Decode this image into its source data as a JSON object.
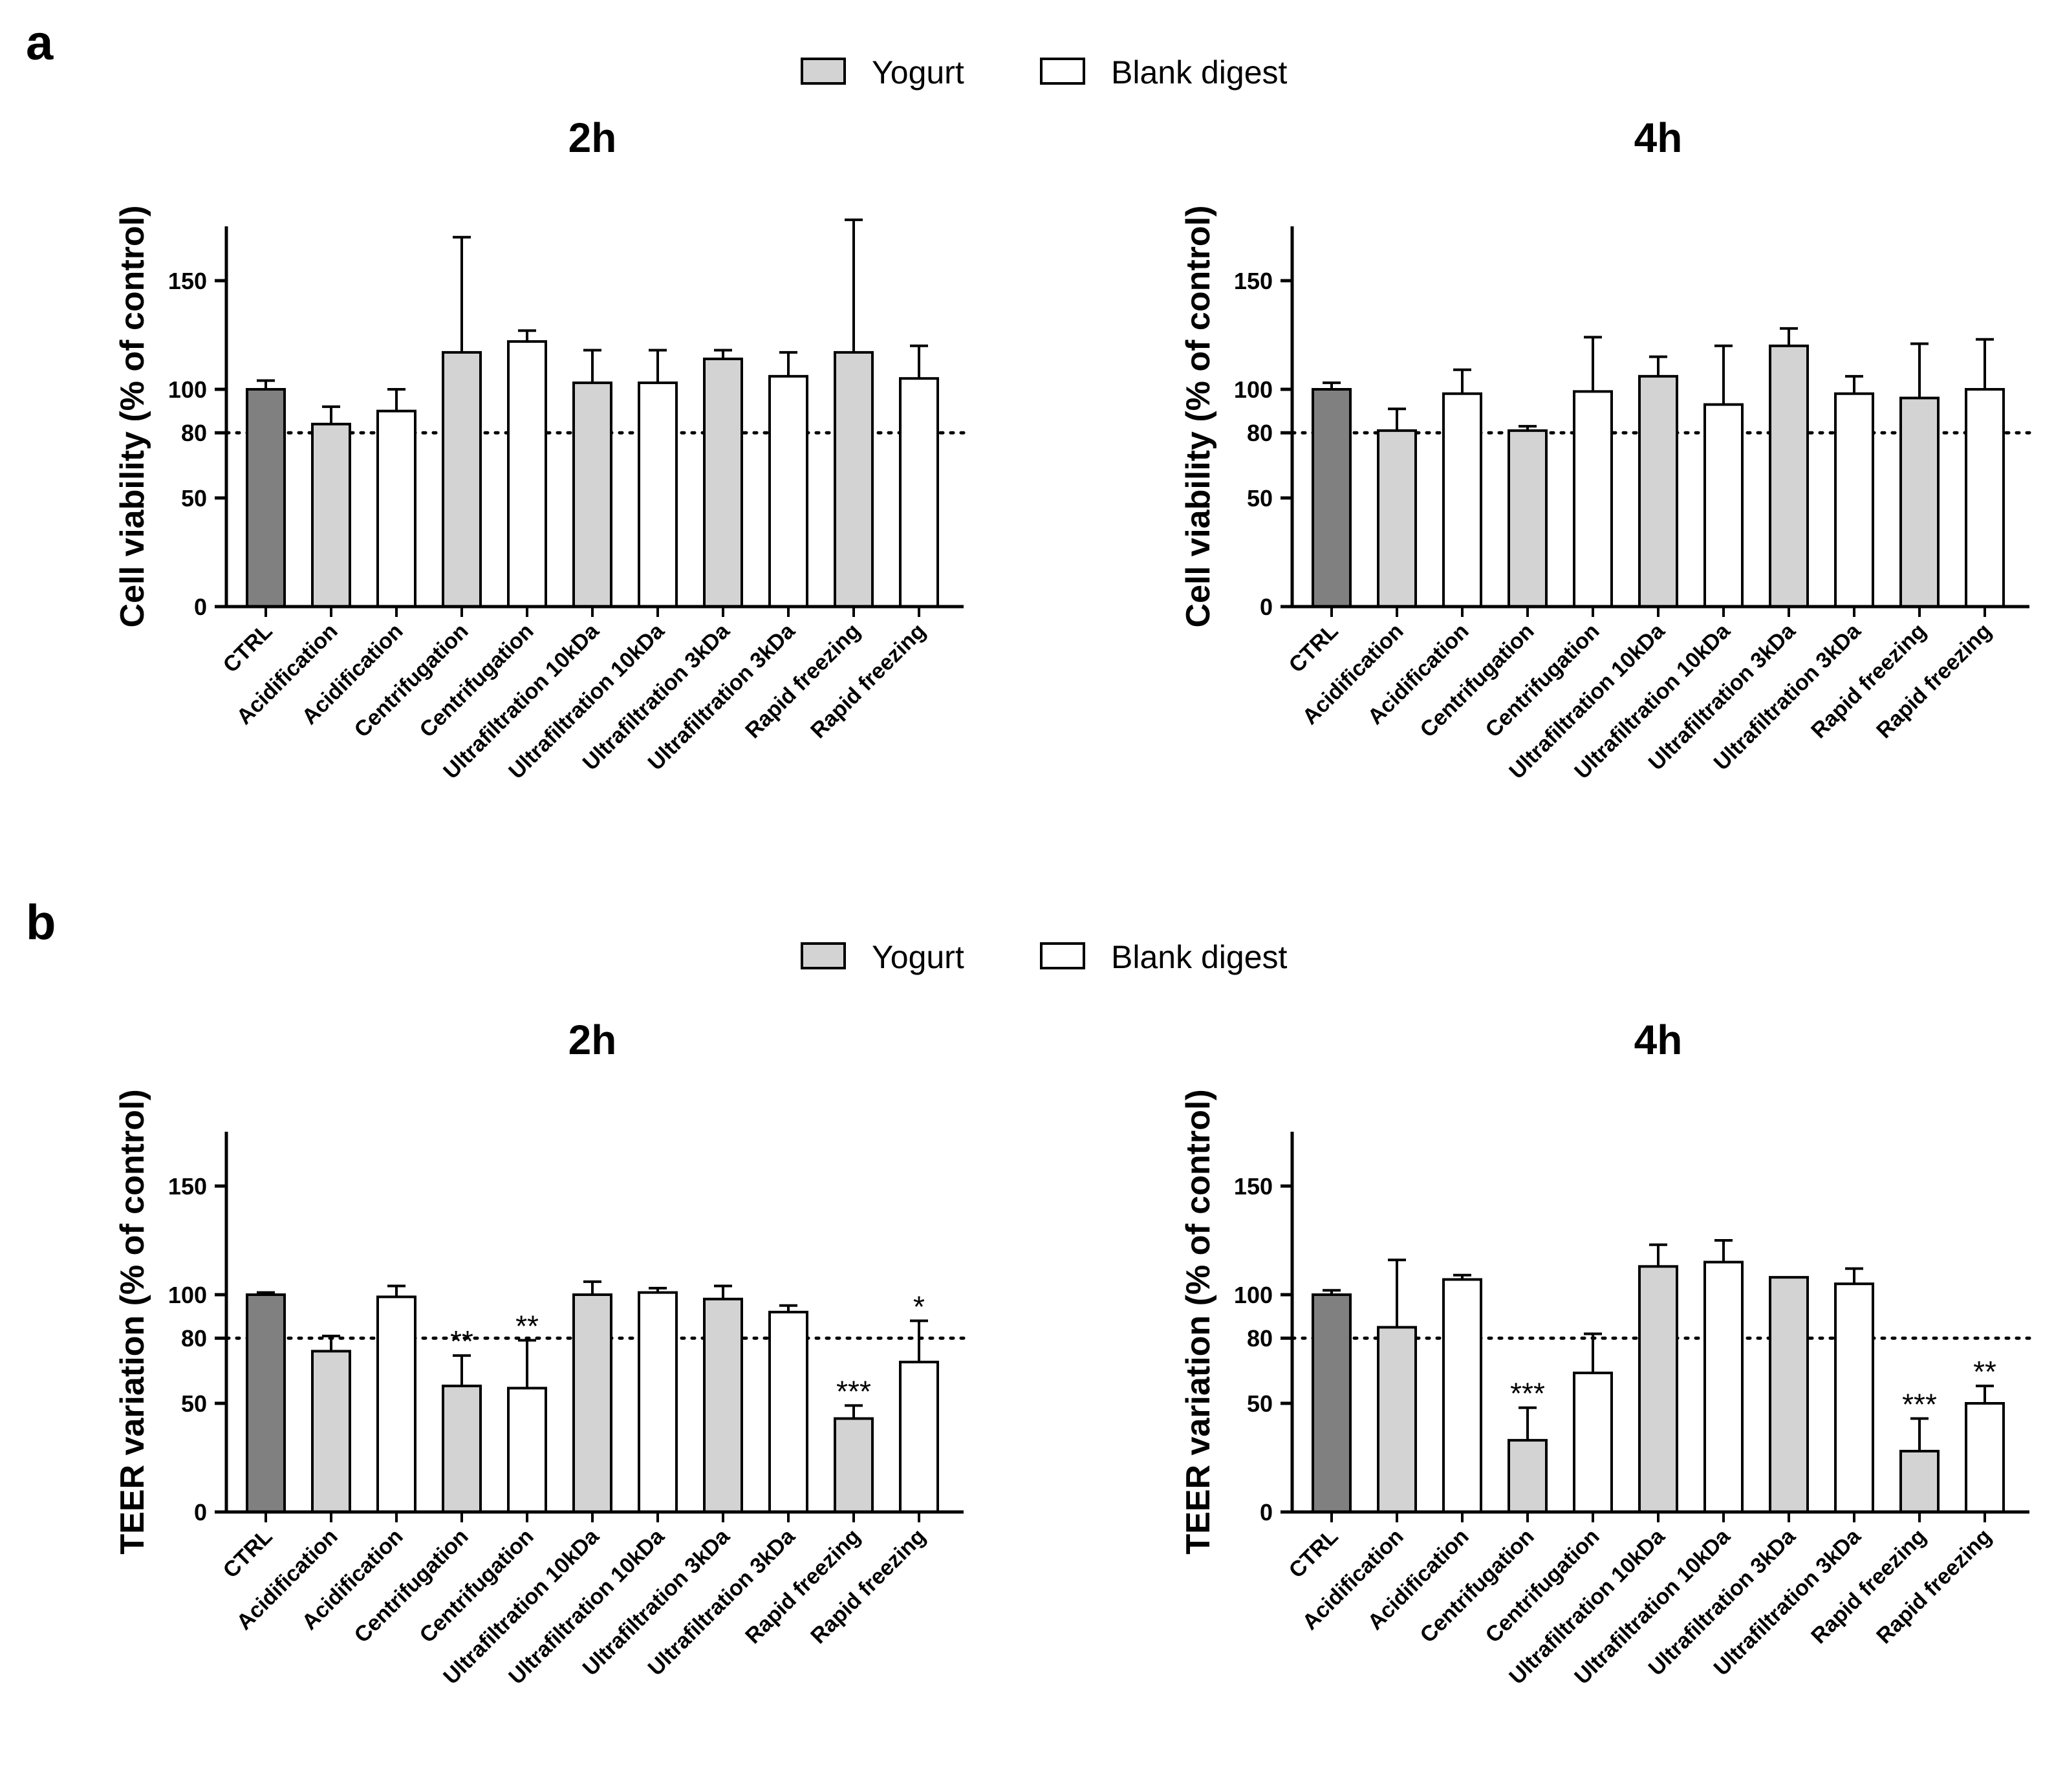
{
  "panels": [
    {
      "label": "a",
      "legend": [
        {
          "name": "Yogurt",
          "color": "#d3d3d3"
        },
        {
          "name": "Blank digest",
          "color": "#ffffff"
        }
      ]
    },
    {
      "label": "b",
      "legend": [
        {
          "name": "Yogurt",
          "color": "#d3d3d3"
        },
        {
          "name": "Blank digest",
          "color": "#ffffff"
        }
      ]
    }
  ],
  "colors": {
    "ctrl": "#808080",
    "yogurt": "#d3d3d3",
    "blank": "#ffffff",
    "stroke": "#000000"
  },
  "chart_data": [
    {
      "type": "bar",
      "panel": "a",
      "title": "2h",
      "ylabel": "Cell viability (% of control)",
      "ylim": [
        0,
        175
      ],
      "yticks": [
        0,
        50,
        80,
        100,
        150
      ],
      "reference_line": 80,
      "categories": [
        "CTRL",
        "Acidification",
        "Acidification",
        "Centrifugation",
        "Centrifugation",
        "Ultrafiltration 10kDa",
        "Ultrafiltration 10kDa",
        "Ultrafiltration 3kDa",
        "Ultrafiltration 3kDa",
        "Rapid freezing",
        "Rapid freezing"
      ],
      "groups": [
        "ctrl",
        "yogurt",
        "blank",
        "yogurt",
        "blank",
        "yogurt",
        "blank",
        "yogurt",
        "blank",
        "yogurt",
        "blank"
      ],
      "values": [
        100,
        84,
        90,
        117,
        122,
        103,
        103,
        114,
        106,
        117,
        105
      ],
      "errors": [
        4,
        8,
        10,
        53,
        5,
        15,
        15,
        4,
        11,
        61,
        15
      ],
      "significance": [
        "",
        "",
        "",
        "",
        "",
        "",
        "",
        "",
        "",
        "",
        ""
      ]
    },
    {
      "type": "bar",
      "panel": "a",
      "title": "4h",
      "ylabel": "Cell viability (% of control)",
      "ylim": [
        0,
        175
      ],
      "yticks": [
        0,
        50,
        80,
        100,
        150
      ],
      "reference_line": 80,
      "categories": [
        "CTRL",
        "Acidification",
        "Acidification",
        "Centrifugation",
        "Centrifugation",
        "Ultrafiltration 10kDa",
        "Ultrafiltration 10kDa",
        "Ultrafiltration 3kDa",
        "Ultrafiltration 3kDa",
        "Rapid freezing",
        "Rapid freezing"
      ],
      "groups": [
        "ctrl",
        "yogurt",
        "blank",
        "yogurt",
        "blank",
        "yogurt",
        "blank",
        "yogurt",
        "blank",
        "yogurt",
        "blank"
      ],
      "values": [
        100,
        81,
        98,
        81,
        99,
        106,
        93,
        120,
        98,
        96,
        100
      ],
      "errors": [
        3,
        10,
        11,
        2,
        25,
        9,
        27,
        8,
        8,
        25,
        23
      ],
      "significance": [
        "",
        "",
        "",
        "",
        "",
        "",
        "",
        "",
        "",
        "",
        ""
      ]
    },
    {
      "type": "bar",
      "panel": "b",
      "title": "2h",
      "ylabel": "TEER variation (% of control)",
      "ylim": [
        0,
        175
      ],
      "yticks": [
        0,
        50,
        80,
        100,
        150
      ],
      "reference_line": 80,
      "categories": [
        "CTRL",
        "Acidification",
        "Acidification",
        "Centrifugation",
        "Centrifugation",
        "Ultrafiltration 10kDa",
        "Ultrafiltration 10kDa",
        "Ultrafiltration 3kDa",
        "Ultrafiltration 3kDa",
        "Rapid freezing",
        "Rapid freezing"
      ],
      "groups": [
        "ctrl",
        "yogurt",
        "blank",
        "yogurt",
        "blank",
        "yogurt",
        "blank",
        "yogurt",
        "blank",
        "yogurt",
        "blank"
      ],
      "values": [
        100,
        74,
        99,
        58,
        57,
        100,
        101,
        98,
        92,
        43,
        69
      ],
      "errors": [
        1,
        7,
        5,
        14,
        22,
        6,
        2,
        6,
        3,
        6,
        19
      ],
      "significance": [
        "",
        "",
        "",
        "**",
        "**",
        "",
        "",
        "",
        "",
        "***",
        "*"
      ]
    },
    {
      "type": "bar",
      "panel": "b",
      "title": "4h",
      "ylabel": "TEER variation (% of control)",
      "ylim": [
        0,
        175
      ],
      "yticks": [
        0,
        50,
        80,
        100,
        150
      ],
      "reference_line": 80,
      "categories": [
        "CTRL",
        "Acidification",
        "Acidification",
        "Centrifugation",
        "Centrifugation",
        "Ultrafiltration 10kDa",
        "Ultrafiltration 10kDa",
        "Ultrafiltration 3kDa",
        "Ultrafiltration 3kDa",
        "Rapid freezing",
        "Rapid freezing"
      ],
      "groups": [
        "ctrl",
        "yogurt",
        "blank",
        "yogurt",
        "blank",
        "yogurt",
        "blank",
        "yogurt",
        "blank",
        "yogurt",
        "blank"
      ],
      "values": [
        100,
        85,
        107,
        33,
        64,
        113,
        115,
        108,
        105,
        28,
        50
      ],
      "errors": [
        2,
        31,
        2,
        15,
        18,
        10,
        10,
        0,
        7,
        15,
        8
      ],
      "significance": [
        "",
        "",
        "",
        "***",
        "",
        "",
        "",
        "",
        "",
        "***",
        "**"
      ]
    }
  ]
}
